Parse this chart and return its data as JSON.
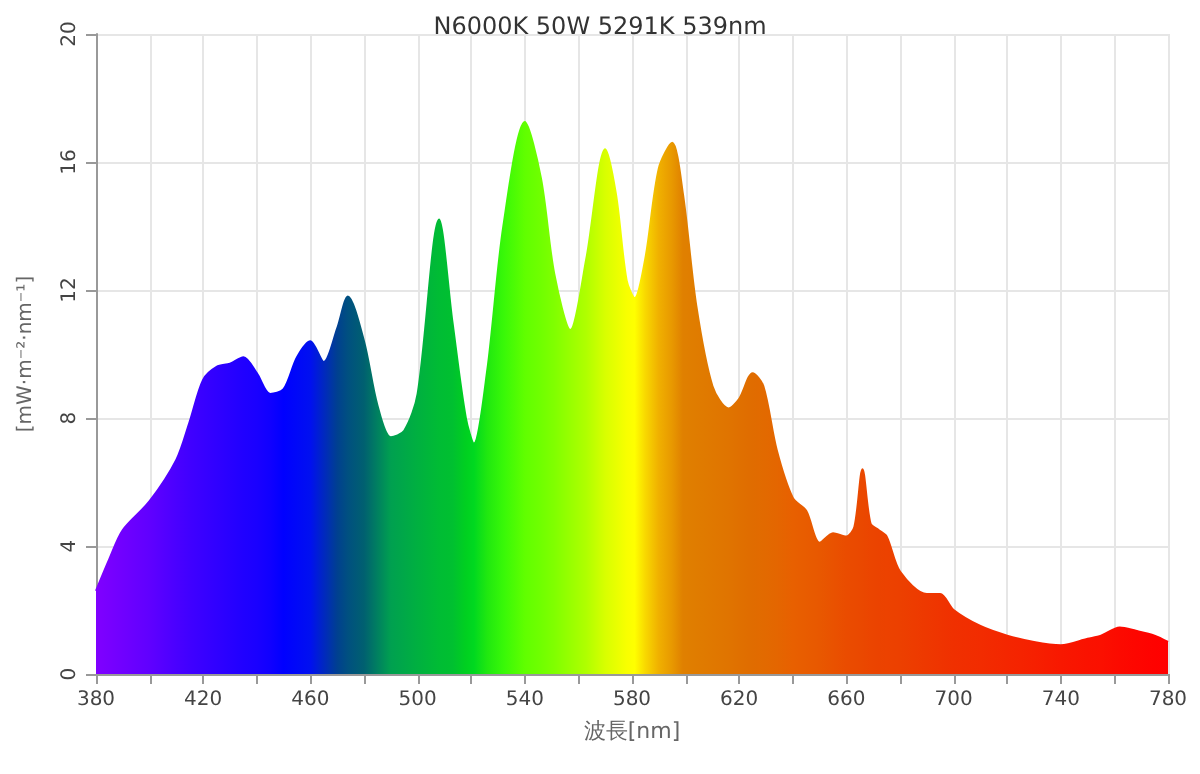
{
  "chart_data": {
    "type": "area",
    "title": "N6000K 50W 5291K 539nm",
    "xlabel": "波長[nm]",
    "ylabel": "[mW·m⁻²·nm⁻¹]",
    "xlim": [
      380,
      780
    ],
    "ylim": [
      0,
      20
    ],
    "xticks": [
      380,
      {
        "value": 400,
        "label": null
      },
      420,
      {
        "value": 440,
        "label": null
      },
      460,
      {
        "value": 480,
        "label": null
      },
      500,
      {
        "value": 520,
        "label": null
      },
      540,
      {
        "value": 560,
        "label": null
      },
      580,
      {
        "value": 600,
        "label": null
      },
      620,
      {
        "value": 640,
        "label": null
      },
      660,
      {
        "value": 680,
        "label": null
      },
      700,
      {
        "value": 720,
        "label": null
      },
      740,
      {
        "value": 760,
        "label": null
      },
      780
    ],
    "yticks": [
      0,
      4,
      8,
      12,
      16,
      20
    ],
    "grid": true,
    "series": [
      {
        "x": [
          380,
          385,
          390,
          400,
          410,
          415,
          420,
          425,
          430,
          435,
          440,
          445,
          450,
          455,
          460,
          465,
          470,
          474,
          480,
          485,
          490,
          495,
          500,
          508,
          513,
          518,
          521,
          526,
          532,
          540,
          546,
          551,
          557,
          563,
          570,
          574,
          578,
          581,
          585,
          590,
          595,
          599,
          604,
          610,
          616,
          620,
          625,
          629,
          634,
          640,
          645,
          650,
          655,
          660,
          663,
          666,
          669,
          672,
          675,
          680,
          690,
          695,
          700,
          710,
          720,
          730,
          740,
          750,
          755,
          762,
          768,
          775,
          780
        ],
        "values": [
          2.6,
          3.6,
          4.5,
          5.4,
          6.7,
          7.9,
          9.2,
          9.6,
          9.7,
          9.9,
          9.4,
          8.75,
          8.9,
          9.9,
          10.4,
          9.75,
          10.8,
          11.8,
          10.4,
          8.4,
          7.4,
          7.6,
          8.75,
          14.2,
          11,
          8,
          7.2,
          9.5,
          14,
          17.25,
          15.5,
          12.5,
          10.75,
          13,
          16.4,
          15,
          12.3,
          11.75,
          13,
          15.8,
          16.6,
          15,
          11.5,
          9,
          8.3,
          8.6,
          9.4,
          9,
          7,
          5.5,
          5.1,
          4.1,
          4.4,
          4.3,
          4.6,
          6.4,
          4.7,
          4.5,
          4.3,
          3.2,
          2.5,
          2.5,
          2.0,
          1.5,
          1.2,
          1.0,
          0.9,
          1.1,
          1.2,
          1.45,
          1.35,
          1.2,
          1.0
        ],
        "colors": [
          "#8000ff",
          "#7800ff",
          "#7000ff",
          "#6000ff",
          "#4a00ff",
          "#4000ff",
          "#3800ff",
          "#3000ff",
          "#2800ff",
          "#2000ff",
          "#1a00ff",
          "#1000ff",
          "#0000ff",
          "#0008f8",
          "#0010f0",
          "#0028c0",
          "#004090",
          "#005080",
          "#006070",
          "#008060",
          "#00a050",
          "#00a848",
          "#00b040",
          "#00bc34",
          "#00c030",
          "#00d020",
          "#00d820",
          "#20e810",
          "#38f808",
          "#60ff00",
          "#70ff00",
          "#80ff00",
          "#98ff00",
          "#b0ff00",
          "#d8ff00",
          "#e8ff00",
          "#f8ff00",
          "#ffff00",
          "#f8d800",
          "#f0b000",
          "#e89800",
          "#e08000",
          "#e07c00",
          "#e07800",
          "#e07400",
          "#e07000",
          "#e06c00",
          "#e26a00",
          "#e46600",
          "#e86000",
          "#e85c00",
          "#e85800",
          "#e95200",
          "#ea4c00",
          "#ea4a00",
          "#ea4800",
          "#eb4500",
          "#eb4300",
          "#ec4200",
          "#ec4000",
          "#ee3800",
          "#ef3400",
          "#f03000",
          "#f22c00",
          "#f42600",
          "#f62000",
          "#f81800",
          "#fa1200",
          "#fb1000",
          "#fc0a00",
          "#fd0600",
          "#fe0200",
          "#ff0000"
        ]
      }
    ]
  }
}
